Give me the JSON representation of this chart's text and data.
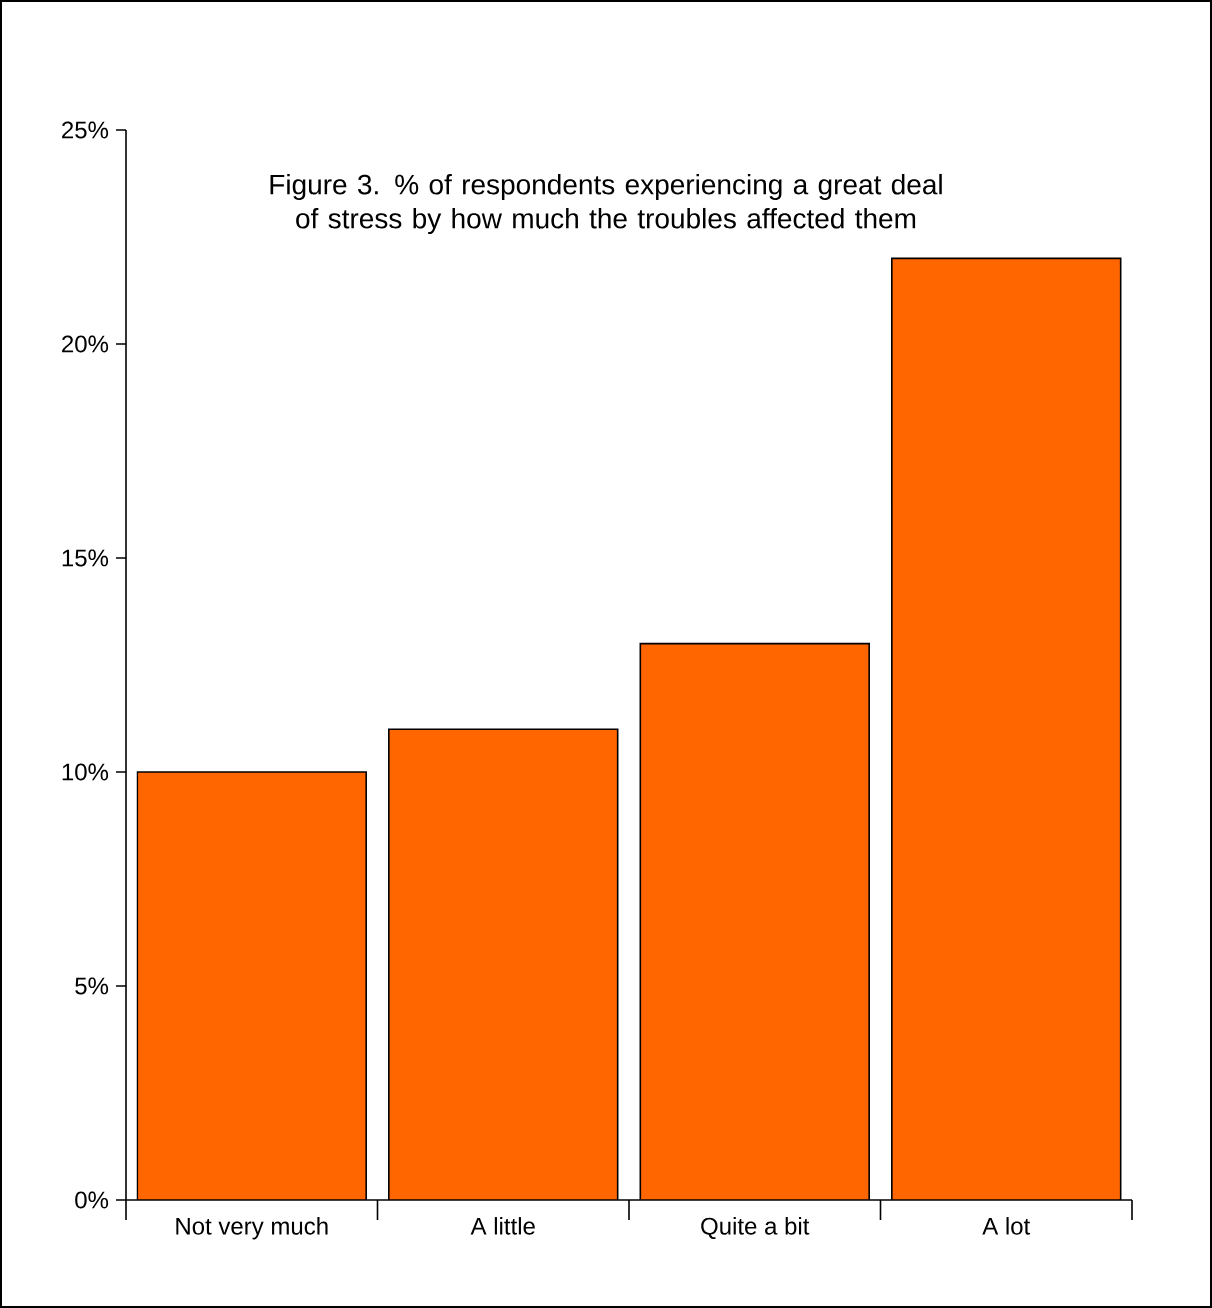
{
  "chart_data": {
    "type": "bar",
    "title": "Figure 3. % of respondents experiencing a great deal of stress by how much the troubles affected them",
    "categories": [
      "Not very much",
      "A little",
      "Quite a bit",
      "A lot"
    ],
    "values": [
      10,
      11,
      13,
      22
    ],
    "color": "#ff6600",
    "ylim": [
      0,
      25
    ],
    "yticks": [
      {
        "value": 0,
        "label": "0%"
      },
      {
        "value": 5,
        "label": "5%"
      },
      {
        "value": 10,
        "label": "10%"
      },
      {
        "value": 15,
        "label": "15%"
      },
      {
        "value": 20,
        "label": "20%"
      },
      {
        "value": 25,
        "label": "25%"
      }
    ],
    "grid": false
  }
}
